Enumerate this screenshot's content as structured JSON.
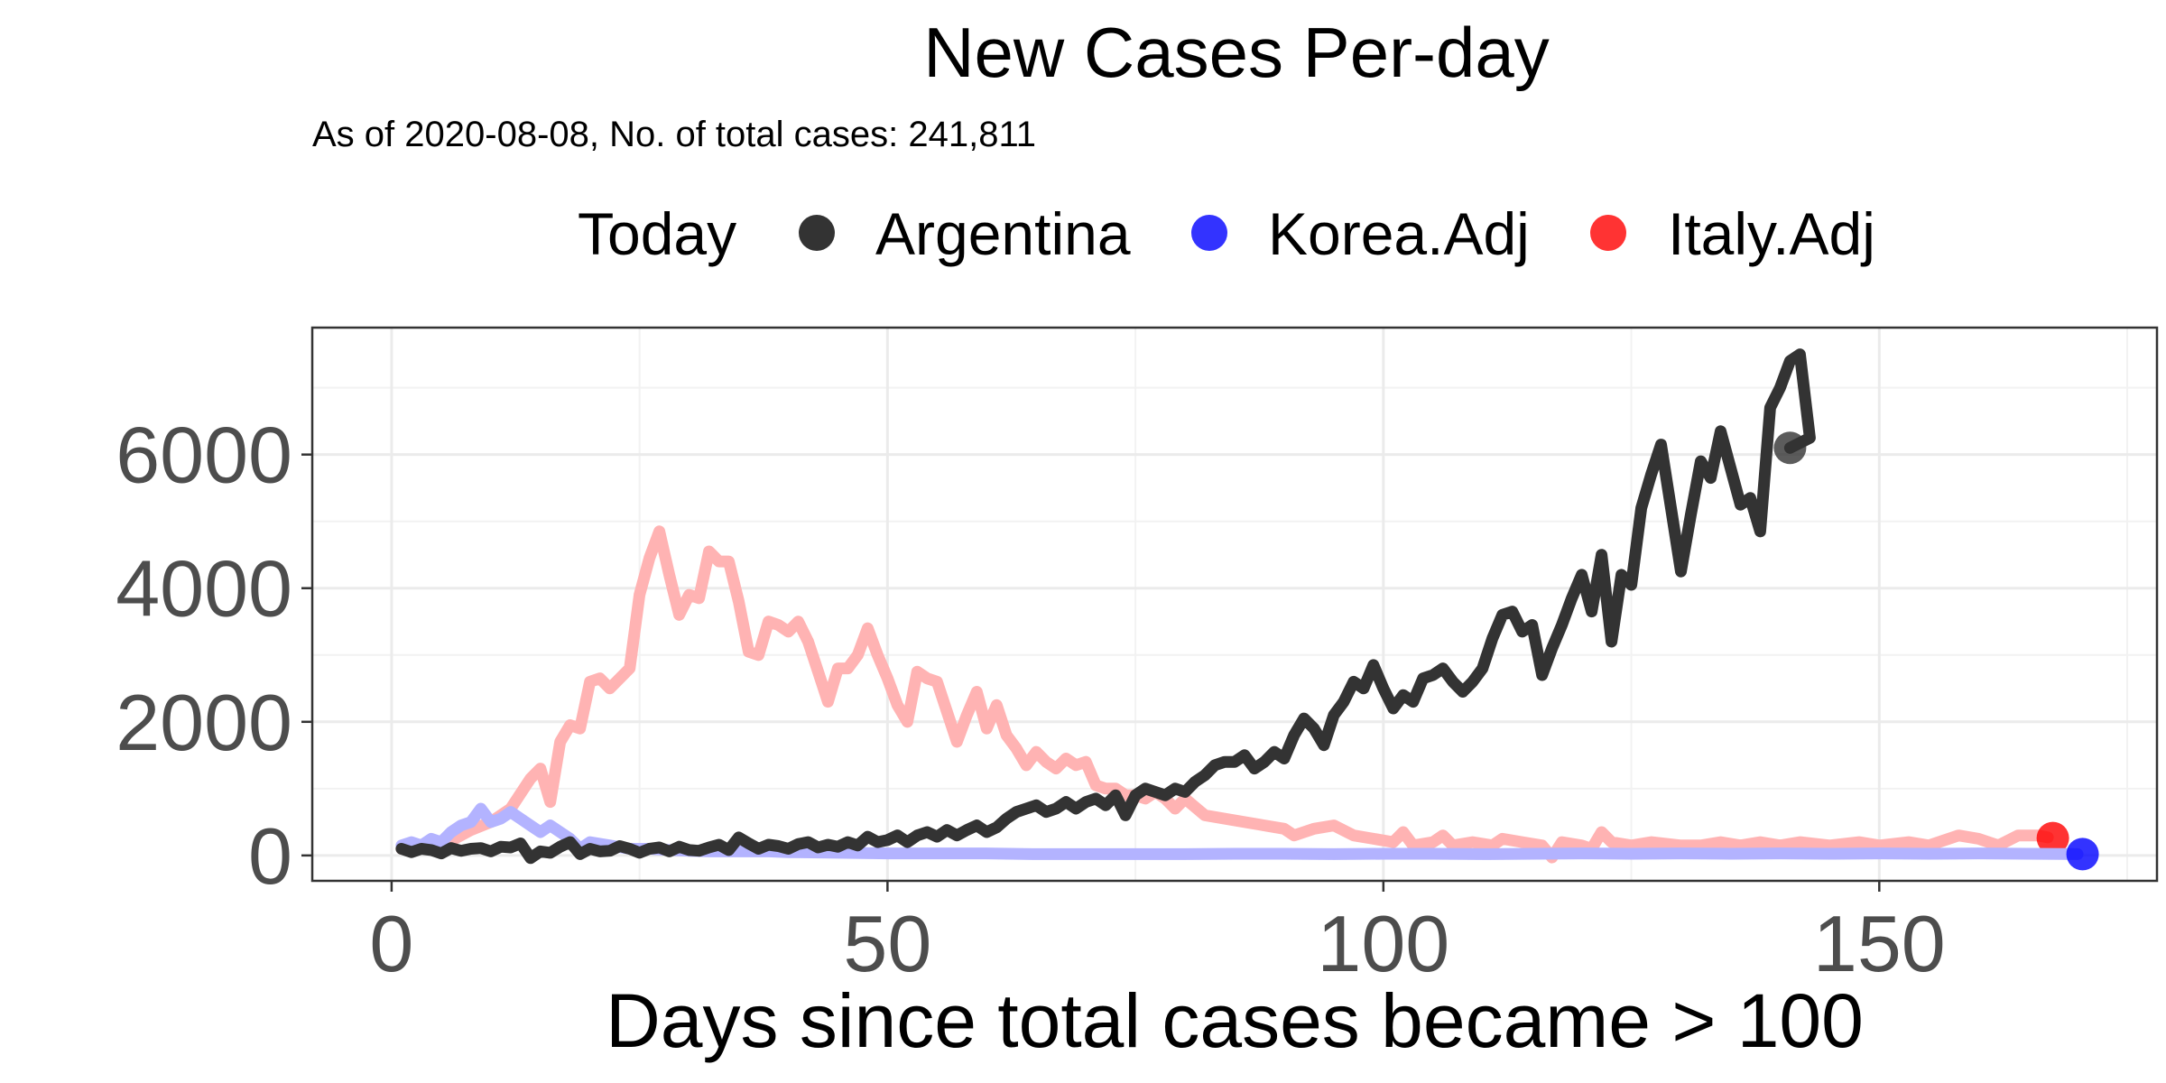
{
  "chart_data": {
    "type": "line",
    "title": "New Cases Per-day",
    "subtitle": "As of 2020-08-08, No. of total cases: 241,811",
    "xlabel": "Days since total cases became > 100",
    "ylabel": "",
    "xlim": [
      -8,
      178
    ],
    "ylim": [
      -380,
      7900
    ],
    "x_ticks": [
      0,
      50,
      100,
      150
    ],
    "y_ticks": [
      0,
      2000,
      4000,
      6000
    ],
    "grid": true,
    "legend": {
      "title": "Today",
      "position": "top",
      "entries": [
        "Argentina",
        "Korea.Adj",
        "Italy.Adj"
      ]
    },
    "series": [
      {
        "name": "Italy.Adj",
        "color": "#ff0000",
        "line_color": "#ffb3b3",
        "end_point": [
          167.5,
          260
        ],
        "points": [
          [
            1,
            100
          ],
          [
            2,
            160
          ],
          [
            4,
            130
          ],
          [
            6,
            220
          ],
          [
            8,
            380
          ],
          [
            10,
            500
          ],
          [
            12,
            700
          ],
          [
            14,
            1150
          ],
          [
            15,
            1300
          ],
          [
            16,
            800
          ],
          [
            17,
            1700
          ],
          [
            18,
            1950
          ],
          [
            19,
            1900
          ],
          [
            20,
            2600
          ],
          [
            21,
            2650
          ],
          [
            22,
            2500
          ],
          [
            24,
            2800
          ],
          [
            25,
            3900
          ],
          [
            26,
            4450
          ],
          [
            27,
            4850
          ],
          [
            28,
            4200
          ],
          [
            29,
            3600
          ],
          [
            30,
            3900
          ],
          [
            31,
            3850
          ],
          [
            32,
            4550
          ],
          [
            33,
            4400
          ],
          [
            34,
            4400
          ],
          [
            35,
            3800
          ],
          [
            36,
            3050
          ],
          [
            37,
            3000
          ],
          [
            38,
            3500
          ],
          [
            39,
            3450
          ],
          [
            40,
            3350
          ],
          [
            41,
            3500
          ],
          [
            42,
            3200
          ],
          [
            43,
            2750
          ],
          [
            44,
            2300
          ],
          [
            45,
            2800
          ],
          [
            46,
            2800
          ],
          [
            47,
            3000
          ],
          [
            48,
            3400
          ],
          [
            49,
            3000
          ],
          [
            50,
            2650
          ],
          [
            51,
            2250
          ],
          [
            52,
            2000
          ],
          [
            53,
            2750
          ],
          [
            54,
            2650
          ],
          [
            55,
            2600
          ],
          [
            56,
            2150
          ],
          [
            57,
            1700
          ],
          [
            58,
            2100
          ],
          [
            59,
            2450
          ],
          [
            60,
            1900
          ],
          [
            61,
            2250
          ],
          [
            62,
            1800
          ],
          [
            63,
            1600
          ],
          [
            64,
            1350
          ],
          [
            65,
            1550
          ],
          [
            66,
            1400
          ],
          [
            67,
            1300
          ],
          [
            68,
            1450
          ],
          [
            69,
            1350
          ],
          [
            70,
            1400
          ],
          [
            71,
            1050
          ],
          [
            72,
            1000
          ],
          [
            73,
            1000
          ],
          [
            74,
            900
          ],
          [
            75,
            900
          ],
          [
            76,
            850
          ],
          [
            77,
            950
          ],
          [
            78,
            850
          ],
          [
            79,
            700
          ],
          [
            80,
            850
          ],
          [
            82,
            600
          ],
          [
            84,
            550
          ],
          [
            86,
            500
          ],
          [
            88,
            450
          ],
          [
            90,
            400
          ],
          [
            91,
            300
          ],
          [
            93,
            400
          ],
          [
            95,
            450
          ],
          [
            97,
            300
          ],
          [
            99,
            250
          ],
          [
            101,
            200
          ],
          [
            102,
            350
          ],
          [
            103,
            150
          ],
          [
            105,
            200
          ],
          [
            106,
            300
          ],
          [
            107,
            150
          ],
          [
            109,
            200
          ],
          [
            111,
            150
          ],
          [
            112,
            250
          ],
          [
            114,
            200
          ],
          [
            116,
            150
          ],
          [
            117,
            -30
          ],
          [
            118,
            200
          ],
          [
            120,
            150
          ],
          [
            121,
            100
          ],
          [
            122,
            350
          ],
          [
            123,
            200
          ],
          [
            125,
            150
          ],
          [
            127,
            200
          ],
          [
            130,
            150
          ],
          [
            132,
            150
          ],
          [
            134,
            200
          ],
          [
            136,
            150
          ],
          [
            138,
            200
          ],
          [
            140,
            150
          ],
          [
            142,
            200
          ],
          [
            145,
            150
          ],
          [
            148,
            200
          ],
          [
            150,
            150
          ],
          [
            153,
            200
          ],
          [
            155,
            150
          ],
          [
            158,
            300
          ],
          [
            160,
            250
          ],
          [
            162,
            150
          ],
          [
            164,
            300
          ],
          [
            166,
            300
          ],
          [
            167,
            270
          ]
        ]
      },
      {
        "name": "Korea.Adj",
        "color": "#0000ff",
        "line_color": "#b3b3ff",
        "end_point": [
          170.5,
          20
        ],
        "points": [
          [
            1,
            150
          ],
          [
            2,
            200
          ],
          [
            3,
            150
          ],
          [
            4,
            250
          ],
          [
            5,
            200
          ],
          [
            6,
            350
          ],
          [
            7,
            450
          ],
          [
            8,
            500
          ],
          [
            9,
            700
          ],
          [
            10,
            500
          ],
          [
            11,
            550
          ],
          [
            12,
            650
          ],
          [
            13,
            550
          ],
          [
            14,
            450
          ],
          [
            15,
            350
          ],
          [
            16,
            450
          ],
          [
            17,
            350
          ],
          [
            18,
            250
          ],
          [
            19,
            100
          ],
          [
            20,
            200
          ],
          [
            22,
            150
          ],
          [
            24,
            100
          ],
          [
            26,
            100
          ],
          [
            28,
            80
          ],
          [
            30,
            70
          ],
          [
            32,
            60
          ],
          [
            35,
            60
          ],
          [
            38,
            60
          ],
          [
            40,
            50
          ],
          [
            45,
            40
          ],
          [
            50,
            30
          ],
          [
            55,
            30
          ],
          [
            60,
            30
          ],
          [
            65,
            20
          ],
          [
            70,
            20
          ],
          [
            75,
            20
          ],
          [
            80,
            20
          ],
          [
            85,
            25
          ],
          [
            90,
            25
          ],
          [
            95,
            20
          ],
          [
            100,
            25
          ],
          [
            105,
            25
          ],
          [
            110,
            20
          ],
          [
            115,
            25
          ],
          [
            120,
            30
          ],
          [
            125,
            25
          ],
          [
            130,
            30
          ],
          [
            135,
            25
          ],
          [
            140,
            30
          ],
          [
            145,
            25
          ],
          [
            150,
            30
          ],
          [
            155,
            25
          ],
          [
            160,
            30
          ],
          [
            165,
            25
          ],
          [
            170,
            20
          ]
        ]
      },
      {
        "name": "Argentina",
        "color": "#333333",
        "line_color": "#333333",
        "end_point": [
          141,
          6100
        ],
        "points": [
          [
            1,
            100
          ],
          [
            2,
            50
          ],
          [
            3,
            100
          ],
          [
            4,
            80
          ],
          [
            5,
            30
          ],
          [
            6,
            110
          ],
          [
            7,
            70
          ],
          [
            8,
            100
          ],
          [
            9,
            110
          ],
          [
            10,
            60
          ],
          [
            11,
            130
          ],
          [
            12,
            120
          ],
          [
            13,
            180
          ],
          [
            14,
            -40
          ],
          [
            15,
            60
          ],
          [
            16,
            40
          ],
          [
            17,
            130
          ],
          [
            18,
            200
          ],
          [
            19,
            20
          ],
          [
            20,
            100
          ],
          [
            21,
            60
          ],
          [
            22,
            70
          ],
          [
            23,
            140
          ],
          [
            24,
            100
          ],
          [
            25,
            40
          ],
          [
            26,
            100
          ],
          [
            27,
            120
          ],
          [
            28,
            60
          ],
          [
            29,
            130
          ],
          [
            30,
            80
          ],
          [
            31,
            70
          ],
          [
            32,
            120
          ],
          [
            33,
            160
          ],
          [
            34,
            80
          ],
          [
            35,
            270
          ],
          [
            36,
            180
          ],
          [
            37,
            100
          ],
          [
            38,
            160
          ],
          [
            39,
            140
          ],
          [
            40,
            100
          ],
          [
            41,
            170
          ],
          [
            42,
            200
          ],
          [
            43,
            120
          ],
          [
            44,
            160
          ],
          [
            45,
            130
          ],
          [
            46,
            200
          ],
          [
            47,
            150
          ],
          [
            48,
            280
          ],
          [
            49,
            200
          ],
          [
            50,
            230
          ],
          [
            51,
            300
          ],
          [
            52,
            200
          ],
          [
            53,
            300
          ],
          [
            54,
            350
          ],
          [
            55,
            280
          ],
          [
            56,
            380
          ],
          [
            57,
            300
          ],
          [
            58,
            380
          ],
          [
            59,
            450
          ],
          [
            60,
            350
          ],
          [
            61,
            420
          ],
          [
            62,
            550
          ],
          [
            63,
            650
          ],
          [
            64,
            700
          ],
          [
            65,
            750
          ],
          [
            66,
            650
          ],
          [
            67,
            700
          ],
          [
            68,
            800
          ],
          [
            69,
            700
          ],
          [
            70,
            800
          ],
          [
            71,
            850
          ],
          [
            72,
            750
          ],
          [
            73,
            900
          ],
          [
            74,
            600
          ],
          [
            75,
            900
          ],
          [
            76,
            1000
          ],
          [
            77,
            950
          ],
          [
            78,
            900
          ],
          [
            79,
            1000
          ],
          [
            80,
            950
          ],
          [
            81,
            1100
          ],
          [
            82,
            1200
          ],
          [
            83,
            1350
          ],
          [
            84,
            1400
          ],
          [
            85,
            1400
          ],
          [
            86,
            1500
          ],
          [
            87,
            1300
          ],
          [
            88,
            1400
          ],
          [
            89,
            1550
          ],
          [
            90,
            1450
          ],
          [
            91,
            1800
          ],
          [
            92,
            2050
          ],
          [
            93,
            1900
          ],
          [
            94,
            1650
          ],
          [
            95,
            2100
          ],
          [
            96,
            2300
          ],
          [
            97,
            2600
          ],
          [
            98,
            2500
          ],
          [
            99,
            2850
          ],
          [
            100,
            2500
          ],
          [
            101,
            2200
          ],
          [
            102,
            2400
          ],
          [
            103,
            2300
          ],
          [
            104,
            2650
          ],
          [
            105,
            2700
          ],
          [
            106,
            2800
          ],
          [
            107,
            2600
          ],
          [
            108,
            2450
          ],
          [
            109,
            2600
          ],
          [
            110,
            2800
          ],
          [
            111,
            3250
          ],
          [
            112,
            3600
          ],
          [
            113,
            3650
          ],
          [
            114,
            3350
          ],
          [
            115,
            3450
          ],
          [
            116,
            2700
          ],
          [
            117,
            3100
          ],
          [
            118,
            3450
          ],
          [
            119,
            3850
          ],
          [
            120,
            4200
          ],
          [
            121,
            3650
          ],
          [
            122,
            4500
          ],
          [
            123,
            3200
          ],
          [
            124,
            4200
          ],
          [
            125,
            4050
          ],
          [
            126,
            5200
          ],
          [
            127,
            5700
          ],
          [
            128,
            6150
          ],
          [
            129,
            5200
          ],
          [
            130,
            4250
          ],
          [
            131,
            5100
          ],
          [
            132,
            5900
          ],
          [
            133,
            5650
          ],
          [
            134,
            6350
          ],
          [
            135,
            5800
          ],
          [
            136,
            5250
          ],
          [
            137,
            5350
          ],
          [
            138,
            4850
          ],
          [
            139,
            6700
          ],
          [
            140,
            7000
          ],
          [
            141,
            7400
          ],
          [
            142,
            7500
          ],
          [
            143,
            6250
          ],
          [
            141,
            6100
          ]
        ]
      }
    ]
  }
}
